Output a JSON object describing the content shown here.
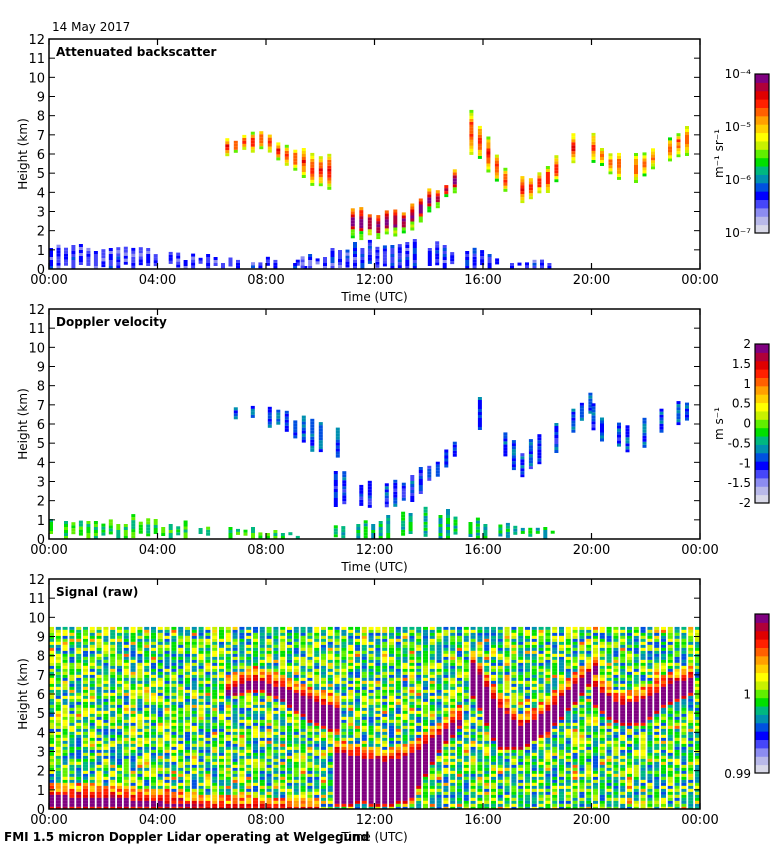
{
  "header": {
    "date": "14 May 2017"
  },
  "footer": {
    "caption": "FMI 1.5 micron Doppler Lidar operating at Welgegund"
  },
  "colors": {
    "colormap": [
      "#d8d8e8",
      "#b8b8e8",
      "#8c8cf0",
      "#4646f8",
      "#0000ff",
      "#0050e0",
      "#0090b0",
      "#00b880",
      "#00e000",
      "#60f000",
      "#c8f000",
      "#ffff00",
      "#ffd000",
      "#ffa000",
      "#ff6000",
      "#ff2000",
      "#e00000",
      "#b0003a",
      "#800080"
    ]
  },
  "chart_data": [
    {
      "type": "heatmap",
      "title": "Attenuated backscatter",
      "xlabel": "Time (UTC)",
      "ylabel": "Height (km)",
      "xlim": [
        0,
        24
      ],
      "ylim": [
        0,
        12
      ],
      "x_ticks": [
        "00:00",
        "04:00",
        "08:00",
        "12:00",
        "16:00",
        "20:00",
        "00:00"
      ],
      "y_ticks": [
        "0",
        "1",
        "2",
        "3",
        "4",
        "5",
        "6",
        "7",
        "8",
        "9",
        "10",
        "11",
        "12"
      ],
      "colorbar": {
        "label": "m⁻¹ sr⁻¹",
        "scale": "log",
        "ticks": [
          "10⁻⁴",
          "10⁻⁵",
          "10⁻⁶",
          "10⁻⁷"
        ],
        "range": [
          1e-07,
          0.0001
        ]
      },
      "features": [
        {
          "name": "boundary-layer",
          "t_start": 0,
          "t_end": 9.5,
          "base_km": 0,
          "top_km": [
            1.0,
            1.0,
            0.9,
            0.5,
            0.3,
            0.2
          ],
          "level": 0.2
        },
        {
          "name": "elevated-cloud-morning",
          "t_start": 6.5,
          "t_end": 10.7,
          "base_km": [
            5.9,
            6.2,
            5.6,
            4.4,
            4.0
          ],
          "top_km": [
            6.6,
            7.1,
            6.6,
            6.0,
            5.5
          ],
          "level": 0.72
        },
        {
          "name": "midday-cloud",
          "t_start": 10.5,
          "t_end": 15.2,
          "base_km": [
            1.6,
            1.5,
            1.6,
            2.0,
            3.2,
            4.5
          ],
          "top_km": [
            3.3,
            3.0,
            2.8,
            3.2,
            4.2,
            5.2
          ],
          "level": 0.85
        },
        {
          "name": "afternoon-cloud",
          "t_start": 15.5,
          "t_end": 20.2,
          "base_km": [
            6.0,
            4.5,
            3.3,
            4.0,
            5.5,
            7.2
          ],
          "top_km": [
            8.0,
            5.8,
            4.6,
            5.5,
            6.8,
            7.9
          ],
          "level": 0.72
        },
        {
          "name": "evening-cloud",
          "t_start": 20.0,
          "t_end": 23.6,
          "base_km": [
            5.4,
            4.6,
            4.5,
            5.5,
            6.0
          ],
          "top_km": [
            6.8,
            5.8,
            6.0,
            6.8,
            7.2
          ],
          "level": 0.68
        },
        {
          "name": "low-echo-midday",
          "t_start": 9.0,
          "t_end": 18.5,
          "base_km": 0,
          "top_km": [
            0.4,
            1.0,
            1.4,
            1.0,
            0.5,
            0.3
          ],
          "level": 0.22
        }
      ]
    },
    {
      "type": "heatmap",
      "title": "Doppler velocity",
      "xlabel": "Time (UTC)",
      "ylabel": "Height (km)",
      "xlim": [
        0,
        24
      ],
      "ylim": [
        0,
        12
      ],
      "x_ticks": [
        "00:00",
        "04:00",
        "08:00",
        "12:00",
        "16:00",
        "20:00",
        "00:00"
      ],
      "y_ticks": [
        "0",
        "1",
        "2",
        "3",
        "4",
        "5",
        "6",
        "7",
        "8",
        "9",
        "10",
        "11",
        "12"
      ],
      "colorbar": {
        "label": "m s⁻¹",
        "scale": "linear",
        "ticks": [
          "2",
          "1.5",
          "1",
          "0.5",
          "0",
          "-0.5",
          "-1",
          "-1.5",
          "-2"
        ],
        "range": [
          -2,
          2
        ]
      },
      "features": [
        {
          "name": "boundary-layer",
          "t_start": 0,
          "t_end": 9.5,
          "base_km": 0,
          "top_km": [
            1.0,
            1.0,
            0.9,
            0.5,
            0.3,
            0.2
          ],
          "level": 0.45
        },
        {
          "name": "elevated-cloud-morning",
          "t_start": 6.5,
          "t_end": 10.7,
          "base_km": [
            5.9,
            6.2,
            5.6,
            4.4,
            4.0
          ],
          "top_km": [
            6.6,
            7.1,
            6.6,
            6.0,
            5.5
          ],
          "level": 0.3
        },
        {
          "name": "midday-cloud",
          "t_start": 10.5,
          "t_end": 15.2,
          "base_km": [
            1.6,
            1.5,
            1.6,
            2.0,
            3.2,
            4.5
          ],
          "top_km": [
            3.3,
            3.0,
            2.8,
            3.2,
            4.2,
            5.2
          ],
          "level": 0.25
        },
        {
          "name": "afternoon-cloud",
          "t_start": 15.5,
          "t_end": 20.2,
          "base_km": [
            6.0,
            4.5,
            3.3,
            4.0,
            5.5,
            7.2
          ],
          "top_km": [
            8.0,
            5.8,
            4.6,
            5.5,
            6.8,
            7.9
          ],
          "level": 0.27
        },
        {
          "name": "evening-cloud",
          "t_start": 20.0,
          "t_end": 23.6,
          "base_km": [
            5.4,
            4.6,
            4.5,
            5.5,
            6.0
          ],
          "top_km": [
            6.8,
            5.8,
            6.0,
            6.8,
            7.2
          ],
          "level": 0.28
        },
        {
          "name": "low-echo-midday",
          "t_start": 10.5,
          "t_end": 18.5,
          "base_km": 0,
          "top_km": [
            0.6,
            1.0,
            1.4,
            1.0,
            0.6,
            0.4
          ],
          "level": 0.4
        }
      ]
    },
    {
      "type": "heatmap",
      "title": "Signal (raw)",
      "xlabel": "Time (UTC)",
      "ylabel": "Height (km)",
      "xlim": [
        0,
        24
      ],
      "ylim": [
        0,
        12
      ],
      "x_ticks": [
        "00:00",
        "04:00",
        "08:00",
        "12:00",
        "16:00",
        "20:00",
        "00:00"
      ],
      "y_ticks": [
        "0",
        "1",
        "2",
        "3",
        "4",
        "5",
        "6",
        "7",
        "8",
        "9",
        "10",
        "11",
        "12"
      ],
      "colorbar": {
        "label": "",
        "scale": "linear",
        "ticks": [
          "1",
          "0.99"
        ],
        "range": [
          0.99,
          1.01
        ]
      },
      "data_top_km": 9.5,
      "features": [
        {
          "name": "boundary-layer",
          "t_start": 0,
          "t_end": 10,
          "base_km": 0,
          "top_km": [
            1.0,
            0.95,
            0.7,
            0.4,
            0.3,
            0.2
          ],
          "level": 0.95
        },
        {
          "name": "elevated-cloud-morning",
          "t_start": 6.5,
          "t_end": 10.7,
          "base_km": [
            5.9,
            6.2,
            5.6,
            4.4,
            4.0
          ],
          "top_km": [
            6.6,
            7.1,
            6.6,
            6.0,
            5.5
          ],
          "level": 0.95
        },
        {
          "name": "midday-cloud",
          "t_start": 10.5,
          "t_end": 15.2,
          "base_km": [
            0.2,
            0.3,
            0.2,
            0.5,
            3.0,
            4.5
          ],
          "top_km": [
            3.3,
            3.0,
            2.8,
            3.2,
            4.2,
            5.2
          ],
          "level": 0.95
        },
        {
          "name": "afternoon-cloud",
          "t_start": 15.5,
          "t_end": 20.2,
          "base_km": [
            6.0,
            3.2,
            3.2,
            4.0,
            5.5,
            7.2
          ],
          "top_km": [
            8.0,
            5.8,
            4.6,
            5.5,
            6.8,
            7.9
          ],
          "level": 0.95
        },
        {
          "name": "evening-cloud",
          "t_start": 20.0,
          "t_end": 23.6,
          "base_km": [
            5.4,
            4.4,
            4.4,
            5.5,
            6.0
          ],
          "top_km": [
            6.8,
            5.8,
            6.0,
            6.8,
            7.2
          ],
          "level": 0.95
        }
      ]
    }
  ]
}
